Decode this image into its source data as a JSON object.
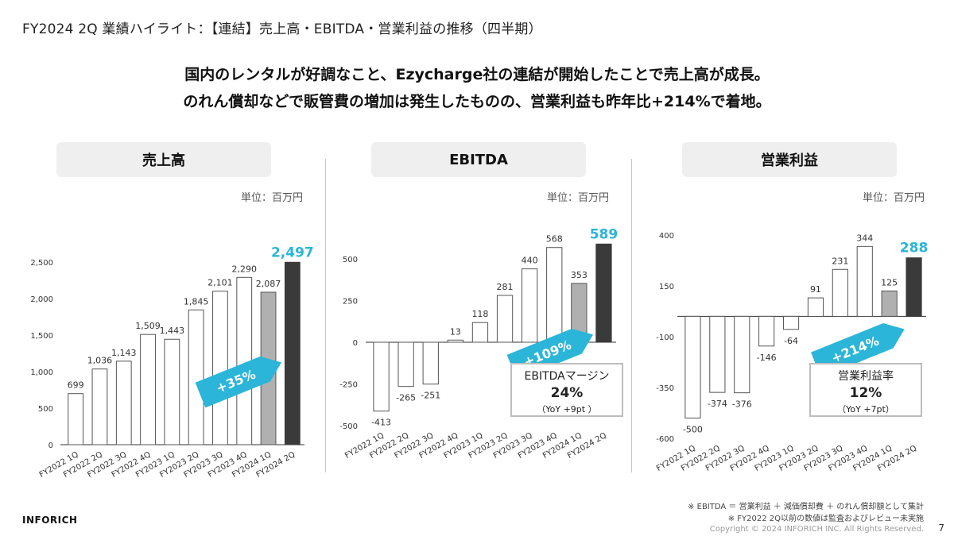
{
  "page": {
    "title": "FY2024 2Q 業績ハイライト：【連結】売上高・EBITDA・営業利益の推移（四半期）",
    "headline_line1": "国内のレンタルが好調なこと、Ezycharge社の連結が開始したことで売上高が成長。",
    "headline_line2": "のれん償却などで販管費の増加は発生したものの、営業利益も昨年比+214%で着地。",
    "unit_label": "単位：百万円",
    "brand": "INFORICH",
    "footnote1": "※ EBITDA ＝ 営業利益 ＋ 減価償却費 ＋ のれん償却額として集計",
    "footnote2": "※ FY2022 2Q以前の数値は監査およびレビュー未実施",
    "copyright": "Copyright © 2024 INFORICH INC. All Rights Reserved.",
    "page_number": "7"
  },
  "colors": {
    "bar_fill": "#ffffff",
    "bar_stroke": "#555555",
    "bar_prev": "#b0b0b0",
    "bar_current": "#3a3a3a",
    "highlight": "#2bb5d8",
    "axis": "#333333"
  },
  "chart_data": [
    {
      "id": "revenue",
      "type": "bar",
      "title": "売上高",
      "categories": [
        "FY2022 1Q",
        "FY2022 2Q",
        "FY2022 3Q",
        "FY2022 4Q",
        "FY2023 1Q",
        "FY2023 2Q",
        "FY2023 3Q",
        "FY2023 4Q",
        "FY2024 1Q",
        "FY2024 2Q"
      ],
      "values": [
        699,
        1036,
        1143,
        1509,
        1443,
        1845,
        2101,
        2290,
        2087,
        2497
      ],
      "value_labels": [
        "699",
        "1,036",
        "1,143",
        "1,509",
        "1,443",
        "1,845",
        "2,101",
        "2,290",
        "2,087",
        "2,497"
      ],
      "ylim": [
        0,
        2500
      ],
      "yticks": [
        0,
        500,
        1000,
        1500,
        2000,
        2500
      ],
      "ytick_labels": [
        "0",
        "500",
        "1,000",
        "1,500",
        "2,000",
        "2,500"
      ],
      "growth_label": "+35%"
    },
    {
      "id": "ebitda",
      "type": "bar",
      "title": "EBITDA",
      "categories": [
        "FY2022 1Q",
        "FY2022 2Q",
        "FY2022 3Q",
        "FY2022 4Q",
        "FY2023 1Q",
        "FY2023 2Q",
        "FY2023 3Q",
        "FY2023 4Q",
        "FY2024 1Q",
        "FY2024 2Q"
      ],
      "values": [
        -413,
        -265,
        -251,
        13,
        118,
        281,
        440,
        568,
        353,
        589
      ],
      "value_labels": [
        "-413",
        "-265",
        "-251",
        "13",
        "118",
        "281",
        "440",
        "568",
        "353",
        "589"
      ],
      "ylim": [
        -500,
        500
      ],
      "yticks": [
        -500,
        -250,
        0,
        250,
        500
      ],
      "ytick_labels": [
        "-500",
        "-250",
        "0",
        "250",
        "500"
      ],
      "growth_label": "+109%",
      "box": {
        "label": "EBITDAマージン",
        "value": "24%",
        "sub": "（YoY +9pt ）"
      }
    },
    {
      "id": "operating_profit",
      "type": "bar",
      "title": "営業利益",
      "categories": [
        "FY2022 1Q",
        "FY2022 2Q",
        "FY2022 3Q",
        "FY2022 4Q",
        "FY2023 1Q",
        "FY2023 2Q",
        "FY2023 3Q",
        "FY2023 4Q",
        "FY2024 1Q",
        "FY2024 2Q"
      ],
      "values": [
        -500,
        -374,
        -376,
        -146,
        -64,
        91,
        231,
        344,
        125,
        288
      ],
      "value_labels": [
        "-500",
        "-374",
        "-376",
        "-146",
        "-64",
        "91",
        "231",
        "344",
        "125",
        "288"
      ],
      "ylim": [
        -600,
        400
      ],
      "yticks": [
        -600,
        -350,
        -100,
        150,
        400
      ],
      "ytick_labels": [
        "-600",
        "-350",
        "-100",
        "150",
        "400"
      ],
      "growth_label": "+214%",
      "box": {
        "label": "営業利益率",
        "value": "12%",
        "sub": "（YoY +7pt）"
      }
    }
  ]
}
